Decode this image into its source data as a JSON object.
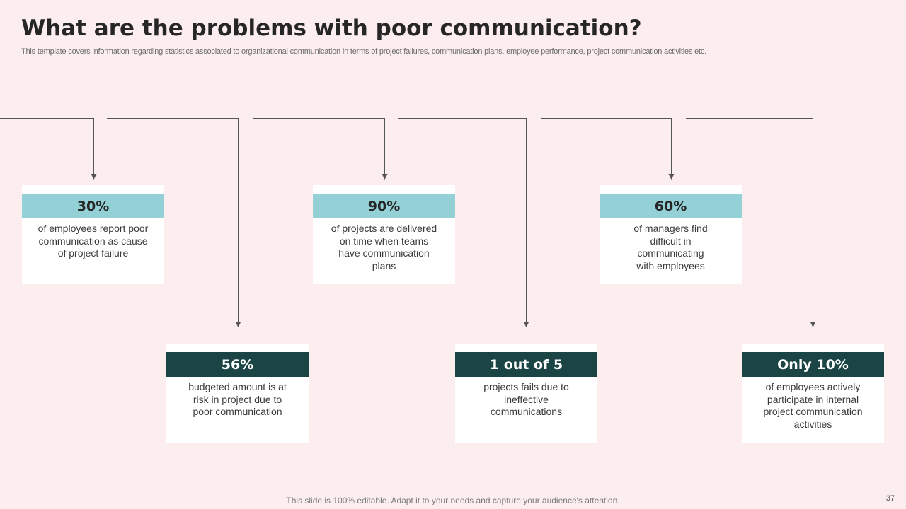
{
  "slide": {
    "title": "What are the problems with poor communication?",
    "subtitle": "This template covers information regarding statistics associated to organizational communication in terms of project failures, communication plans, employee performance, project communication activities etc.",
    "footer": "This slide is 100% editable. Adapt it to your needs and capture your audience's attention.",
    "page_number": "37"
  },
  "stats": [
    {
      "value": "30%",
      "description": "of employees report poor communication as cause of project failure"
    },
    {
      "value": "56%",
      "description": "budgeted amount is at risk in project due to poor communication"
    },
    {
      "value": "90%",
      "description": "of projects are delivered on time when teams have communication plans"
    },
    {
      "value": "1 out of 5",
      "description": "projects fails due to ineffective communications"
    },
    {
      "value": "60%",
      "description": "of managers find difficult in communicating with employees"
    },
    {
      "value": "Only 10%",
      "description": "of employees actively participate in internal project communication activities"
    }
  ],
  "colors": {
    "background": "#fcedef",
    "top_header": "#93d1d6",
    "bottom_header": "#1b4444",
    "card": "#ffffff",
    "connector": "#555555"
  }
}
